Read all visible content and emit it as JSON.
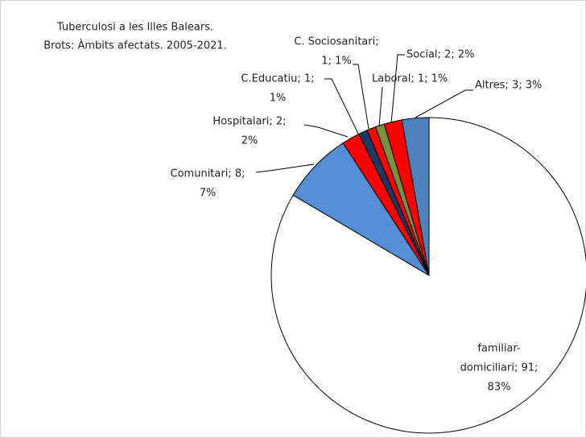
{
  "chart_data": {
    "type": "pie",
    "title": [
      "Tuberculosi a les Illes Balears.",
      "Brots: Àmbits afectats. 2005-2021."
    ],
    "categories": [
      "familiar-domiciliari",
      "Comunitari",
      "Hospitalari",
      "C.Educatiu",
      "C. Sociosanitari",
      "Laboral",
      "Social",
      "Altres"
    ],
    "values": [
      91,
      8,
      2,
      1,
      1,
      1,
      2,
      3
    ],
    "value_labels": [
      [
        "familiar-",
        "domiciliari; 91;",
        "83%"
      ],
      [
        "Comunitari; 8;",
        "7%"
      ],
      [
        "Hospitalari; 2;",
        "2%"
      ],
      [
        "C.Educatiu; 1;",
        "1%"
      ],
      [
        "C. Sociosanitari;",
        "1; 1%"
      ],
      [
        "Laboral; 1; 1%"
      ],
      [
        "Social; 2; 2%"
      ],
      [
        "Altres; 3; 3%"
      ]
    ],
    "colors": [
      "#ffffff",
      "#558ed5",
      "#ff0000",
      "#1f3864",
      "#ff0000",
      "#77933c",
      "#ff0000",
      "#4f81bd"
    ]
  }
}
